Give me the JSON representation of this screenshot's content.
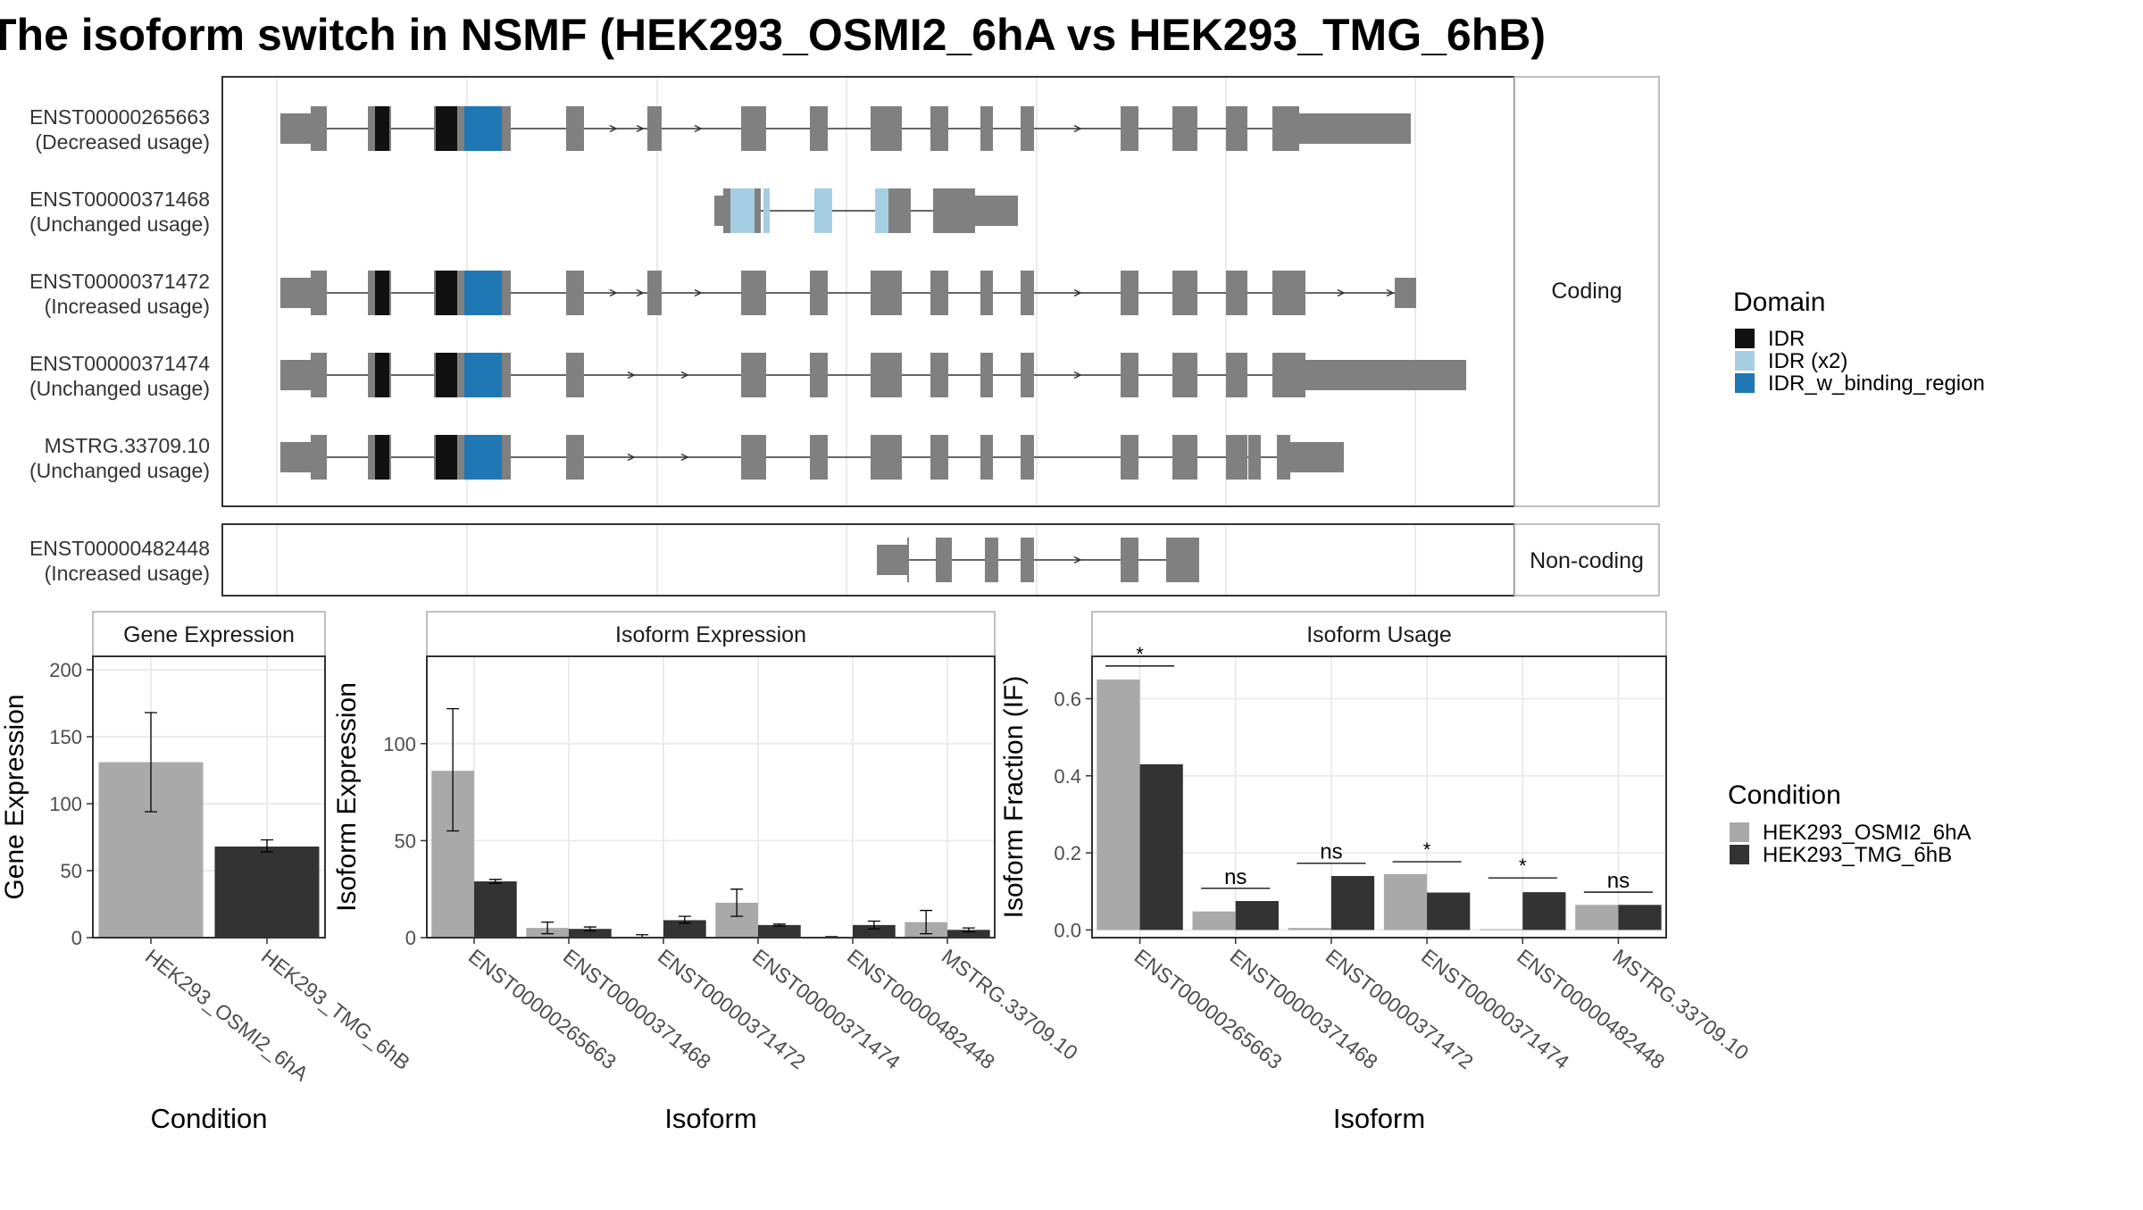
{
  "title": "The isoform switch in NSMF (HEK293_OSMI2_6hA vs HEK293_TMG_6hB)",
  "colors": {
    "exon": "#808080",
    "intron": "#333333",
    "IDR": "#111111",
    "IDR (x2)": "#a6cee3",
    "IDR_w_binding_region": "#1f78b4",
    "HEK293_OSMI2_6hA": "#a9a9a9",
    "HEK293_TMG_6hB": "#333333",
    "panel_border": "#333333",
    "strip_border": "#aaaaaa",
    "grid": "#ebebeb"
  },
  "structure": {
    "coding_label": "Coding",
    "noncoding_label": "Non-coding",
    "isoforms": [
      {
        "id": "ENST00000265663",
        "usage": "(Decreased usage)",
        "group": "coding"
      },
      {
        "id": "ENST00000371468",
        "usage": "(Unchanged usage)",
        "group": "coding"
      },
      {
        "id": "ENST00000371472",
        "usage": "(Increased usage)",
        "group": "coding"
      },
      {
        "id": "ENST00000371474",
        "usage": "(Unchanged usage)",
        "group": "coding"
      },
      {
        "id": "MSTRG.33709.10",
        "usage": "(Unchanged usage)",
        "group": "coding"
      },
      {
        "id": "ENST00000482448",
        "usage": "(Increased usage)",
        "group": "noncoding"
      }
    ]
  },
  "domain_legend": {
    "title": "Domain",
    "items": [
      {
        "label": "IDR",
        "color": "#111111"
      },
      {
        "label": "IDR (x2)",
        "color": "#a6cee3"
      },
      {
        "label": "IDR_w_binding_region",
        "color": "#1f78b4"
      }
    ]
  },
  "condition_legend": {
    "title": "Condition",
    "items": [
      {
        "label": "HEK293_OSMI2_6hA",
        "color": "#a9a9a9"
      },
      {
        "label": "HEK293_TMG_6hB",
        "color": "#333333"
      }
    ]
  },
  "chart_data": [
    {
      "type": "bar",
      "title": "Gene Expression",
      "xlabel": "Condition",
      "ylabel": "Gene Expression",
      "ylim": [
        0,
        210
      ],
      "yticks": [
        0,
        50,
        100,
        150,
        200
      ],
      "categories": [
        "HEK293_OSMI2_6hA",
        "HEK293_TMG_6hB"
      ],
      "values": [
        131,
        68
      ],
      "error": [
        [
          94,
          168
        ],
        [
          64,
          73
        ]
      ]
    },
    {
      "type": "bar",
      "title": "Isoform Expression",
      "xlabel": "Isoform",
      "ylabel": "Isoform Expression",
      "ylim": [
        0,
        145
      ],
      "yticks": [
        0,
        50,
        100
      ],
      "categories": [
        "ENST00000265663",
        "ENST00000371468",
        "ENST00000371472",
        "ENST00000371474",
        "ENST00000482448",
        "MSTRG.33709.10"
      ],
      "series": [
        {
          "name": "HEK293_OSMI2_6hA",
          "values": [
            86,
            5,
            0.5,
            18,
            0.2,
            8
          ],
          "error": [
            [
              55,
              118
            ],
            [
              2,
              8
            ],
            [
              0,
              1.5
            ],
            [
              11,
              25
            ],
            [
              0,
              0.5
            ],
            [
              2,
              14
            ]
          ]
        },
        {
          "name": "HEK293_TMG_6hB",
          "values": [
            29,
            4.5,
            9,
            6.5,
            6.5,
            4
          ],
          "error": [
            [
              28,
              30
            ],
            [
              3.5,
              5.5
            ],
            [
              7.5,
              11
            ],
            [
              6,
              7
            ],
            [
              4.5,
              8.5
            ],
            [
              3,
              5
            ]
          ]
        }
      ]
    },
    {
      "type": "bar",
      "title": "Isoform Usage",
      "xlabel": "Isoform",
      "ylabel": "Isoform Fraction (IF)",
      "ylim": [
        -0.02,
        0.71
      ],
      "yticks": [
        0.0,
        0.2,
        0.4,
        0.6
      ],
      "categories": [
        "ENST00000265663",
        "ENST00000371468",
        "ENST00000371472",
        "ENST00000371474",
        "ENST00000482448",
        "MSTRG.33709.10"
      ],
      "series": [
        {
          "name": "HEK293_OSMI2_6hA",
          "values": [
            0.65,
            0.048,
            0.005,
            0.145,
            0.002,
            0.065
          ]
        },
        {
          "name": "HEK293_TMG_6hB",
          "values": [
            0.43,
            0.075,
            0.14,
            0.097,
            0.098,
            0.065
          ]
        }
      ],
      "significance": [
        "*",
        "ns",
        "ns",
        "*",
        "*",
        "ns"
      ],
      "sig_y": [
        0.685,
        0.108,
        0.173,
        0.177,
        0.135,
        0.098
      ]
    }
  ]
}
